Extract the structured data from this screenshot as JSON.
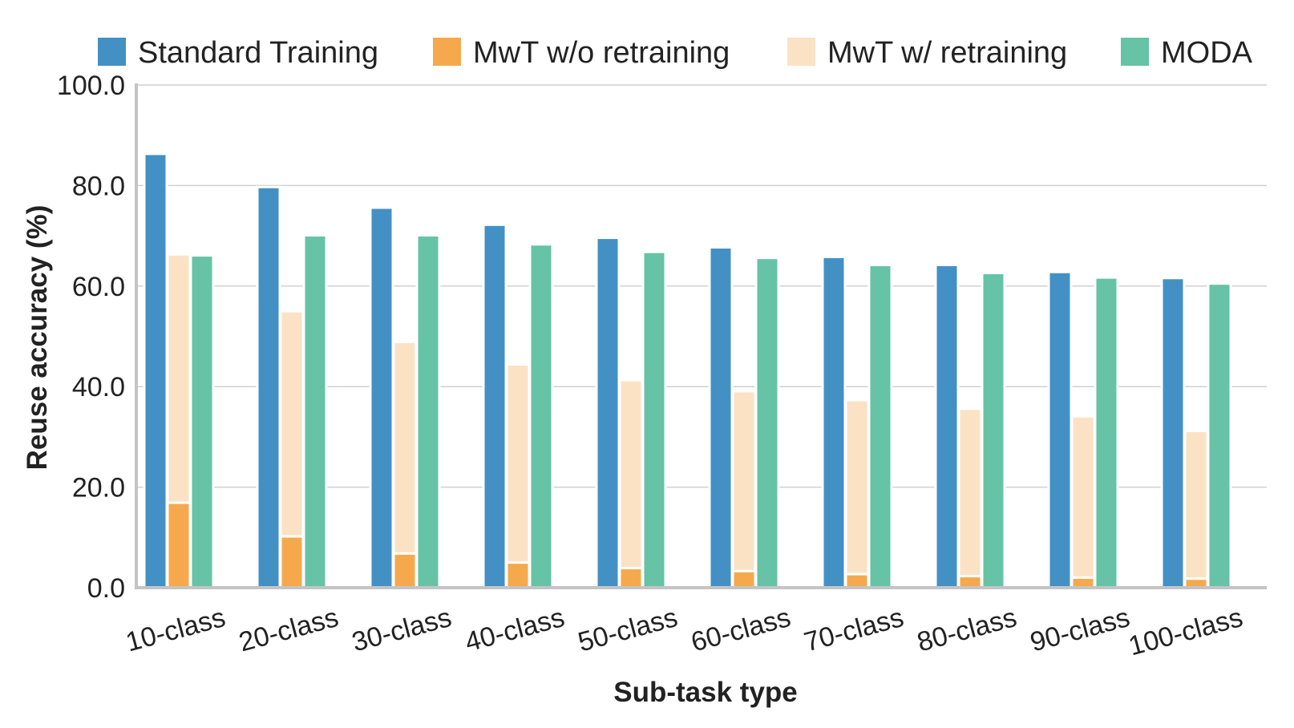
{
  "chart_data": {
    "type": "bar",
    "xlabel": "Sub-task type",
    "ylabel": "Reuse accuracy (%)",
    "ylim": [
      0,
      100
    ],
    "yticks": [
      "0.0",
      "20.0",
      "40.0",
      "60.0",
      "80.0",
      "100.0"
    ],
    "ytick_values": [
      0,
      20,
      40,
      60,
      80,
      100
    ],
    "grid": true,
    "legend_position": "top",
    "categories": [
      "10-class",
      "20-class",
      "30-class",
      "40-class",
      "50-class",
      "60-class",
      "70-class",
      "80-class",
      "90-class",
      "100-class"
    ],
    "series": [
      {
        "name": "Standard Training",
        "color": "#4390c5",
        "values": [
          86.3,
          79.7,
          75.6,
          72.2,
          69.6,
          67.7,
          65.8,
          64.2,
          62.8,
          61.6
        ]
      },
      {
        "name": "MwT w/o retraining",
        "color": "#f6a94c",
        "values": [
          16.9,
          10.2,
          6.8,
          5.0,
          3.9,
          3.3,
          2.7,
          2.3,
          2.0,
          1.8
        ]
      },
      {
        "name": "MwT w/ retraining",
        "color": "#fce2c5",
        "values": [
          66.3,
          55.0,
          48.9,
          44.4,
          41.3,
          39.1,
          37.3,
          35.6,
          34.1,
          31.2
        ]
      },
      {
        "name": "MODA",
        "color": "#66c3a5",
        "values": [
          66.1,
          70.1,
          70.1,
          68.3,
          66.8,
          65.6,
          64.2,
          62.6,
          61.7,
          60.5
        ]
      }
    ],
    "stacked_groups": [
      [
        "MwT w/ retraining",
        "MwT w/o retraining"
      ]
    ]
  }
}
